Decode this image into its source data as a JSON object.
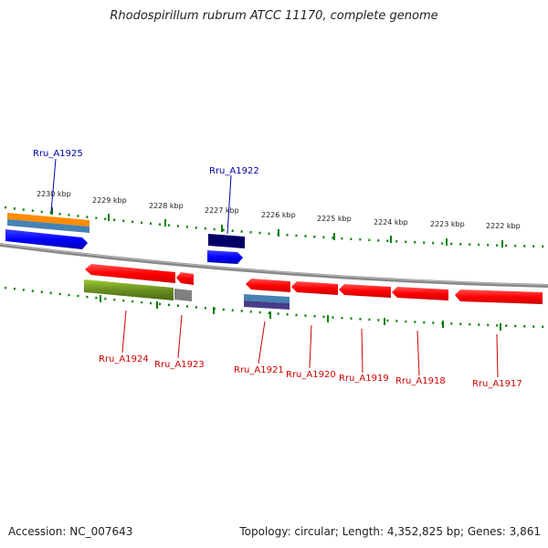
{
  "title": "Rhodospirillum rubrum ATCC 11170, complete genome",
  "footer": {
    "accession": "Accession: NC_007643",
    "summary": "Topology: circular; Length: 4,352,825 bp; Genes: 3,861"
  },
  "ticks": [
    "2230 kbp",
    "2229 kbp",
    "2228 kbp",
    "2227 kbp",
    "2226 kbp",
    "2225 kbp",
    "2224 kbp",
    "2223 kbp",
    "2222 kbp"
  ],
  "genes_forward": [
    "Rru_A1925",
    "Rru_A1922"
  ],
  "genes_reverse": [
    "Rru_A1924",
    "Rru_A1923",
    "Rru_A1921",
    "Rru_A1920",
    "Rru_A1919",
    "Rru_A1918",
    "Rru_A1917"
  ],
  "colors": {
    "forward_label": "#0000aa",
    "reverse_label": "#cc0000",
    "gene_red": "#ff0000",
    "gene_blue": "#0000ff",
    "gene_navy": "#000066",
    "gene_orange": "#ff8c00",
    "gene_steel": "#4682b4",
    "gene_olive": "#6b8e23",
    "gene_gray": "#808080",
    "backbone": "#888888",
    "tick_green": "#008000"
  }
}
